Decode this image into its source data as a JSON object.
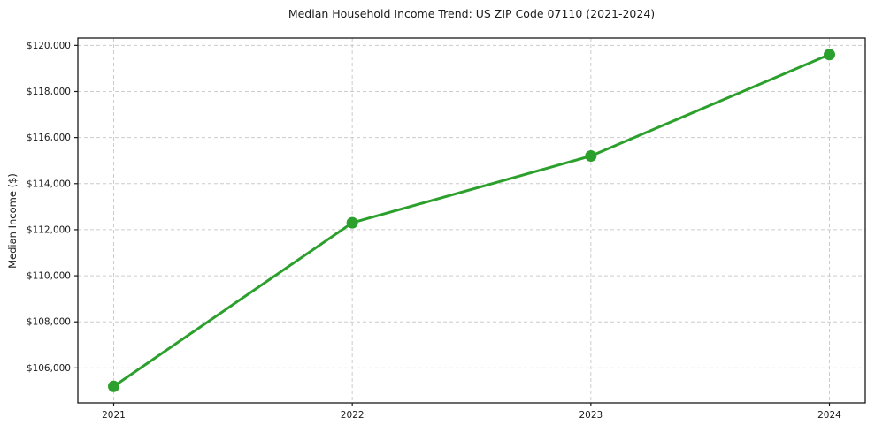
{
  "chart_data": {
    "type": "line",
    "title": "Median Household Income Trend: US ZIP Code 07110 (2021-2024)",
    "xlabel": "",
    "ylabel": "Median Income ($)",
    "categories": [
      "2021",
      "2022",
      "2023",
      "2024"
    ],
    "values": [
      105200,
      112300,
      115200,
      119600
    ],
    "ylim": [
      104480,
      120320
    ],
    "yticks": [
      106000,
      108000,
      110000,
      112000,
      114000,
      116000,
      118000,
      120000
    ],
    "ytick_labels": [
      "$106,000",
      "$108,000",
      "$110,000",
      "$112,000",
      "$114,000",
      "$116,000",
      "$118,000",
      "$120,000"
    ],
    "grid": "dashed-both",
    "legend": "none",
    "line_color": "#2ca02c",
    "marker_color": "#2ca02c",
    "gridline_color": "#cccccc",
    "axis_color": "#1a1a1a",
    "text_color": "#1a1a1a"
  }
}
